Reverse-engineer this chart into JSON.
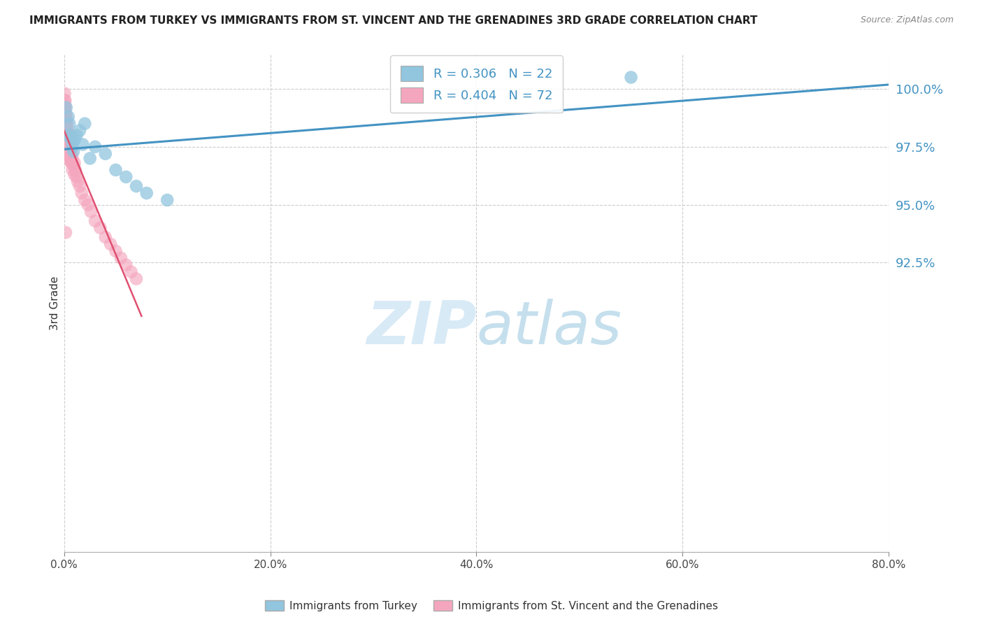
{
  "title": "IMMIGRANTS FROM TURKEY VS IMMIGRANTS FROM ST. VINCENT AND THE GRENADINES 3RD GRADE CORRELATION CHART",
  "source": "Source: ZipAtlas.com",
  "ylabel": "3rd Grade",
  "ylim": [
    80.0,
    101.5
  ],
  "xlim": [
    0.0,
    80.0
  ],
  "legend_r1": "R = 0.306   N = 22",
  "legend_r2": "R = 0.404   N = 72",
  "blue_color": "#92c5de",
  "pink_color": "#f4a6be",
  "blue_line_color": "#4393c3",
  "pink_line_color": "#e05070",
  "watermark": "ZIPatlas",
  "ytick_vals": [
    92.5,
    95.0,
    97.5,
    100.0
  ],
  "xtick_vals": [
    0.0,
    20.0,
    40.0,
    60.0,
    80.0
  ],
  "blue_points_x": [
    0.2,
    0.4,
    0.5,
    0.6,
    0.7,
    0.8,
    1.0,
    1.2,
    1.5,
    2.0,
    2.5,
    3.0,
    4.0,
    5.0,
    6.0,
    7.0,
    8.0,
    10.0,
    55.0,
    0.3,
    0.9,
    1.8
  ],
  "blue_points_y": [
    99.2,
    98.8,
    98.5,
    98.0,
    97.8,
    97.5,
    97.8,
    98.0,
    98.2,
    98.5,
    97.0,
    97.5,
    97.2,
    96.5,
    96.2,
    95.8,
    95.5,
    95.2,
    100.5,
    98.0,
    97.3,
    97.6
  ],
  "pink_points_x": [
    0.05,
    0.05,
    0.05,
    0.05,
    0.05,
    0.05,
    0.05,
    0.07,
    0.07,
    0.07,
    0.07,
    0.07,
    0.07,
    0.1,
    0.1,
    0.1,
    0.1,
    0.1,
    0.1,
    0.1,
    0.1,
    0.15,
    0.15,
    0.15,
    0.15,
    0.2,
    0.2,
    0.2,
    0.2,
    0.2,
    0.25,
    0.25,
    0.25,
    0.3,
    0.3,
    0.3,
    0.3,
    0.35,
    0.35,
    0.4,
    0.4,
    0.4,
    0.5,
    0.5,
    0.5,
    0.6,
    0.6,
    0.7,
    0.7,
    0.8,
    0.8,
    0.9,
    1.0,
    1.0,
    1.1,
    1.2,
    1.3,
    1.5,
    1.7,
    2.0,
    2.3,
    2.6,
    3.0,
    3.5,
    4.0,
    4.5,
    5.0,
    5.5,
    6.0,
    6.5,
    7.0,
    0.15
  ],
  "pink_points_y": [
    99.8,
    99.5,
    99.2,
    99.0,
    98.8,
    98.5,
    98.2,
    99.3,
    99.0,
    98.7,
    98.4,
    98.1,
    97.8,
    99.5,
    99.2,
    98.9,
    98.6,
    98.3,
    98.0,
    97.7,
    97.4,
    99.0,
    98.7,
    98.4,
    98.0,
    98.8,
    98.5,
    98.1,
    97.8,
    97.4,
    98.5,
    98.2,
    97.8,
    98.3,
    98.0,
    97.7,
    97.3,
    98.1,
    97.7,
    97.9,
    97.5,
    97.1,
    97.7,
    97.3,
    96.9,
    97.4,
    97.0,
    97.2,
    96.8,
    97.0,
    96.5,
    96.7,
    96.8,
    96.3,
    96.5,
    96.2,
    96.0,
    95.8,
    95.5,
    95.2,
    95.0,
    94.7,
    94.3,
    94.0,
    93.6,
    93.3,
    93.0,
    92.7,
    92.4,
    92.1,
    91.8,
    93.8
  ]
}
